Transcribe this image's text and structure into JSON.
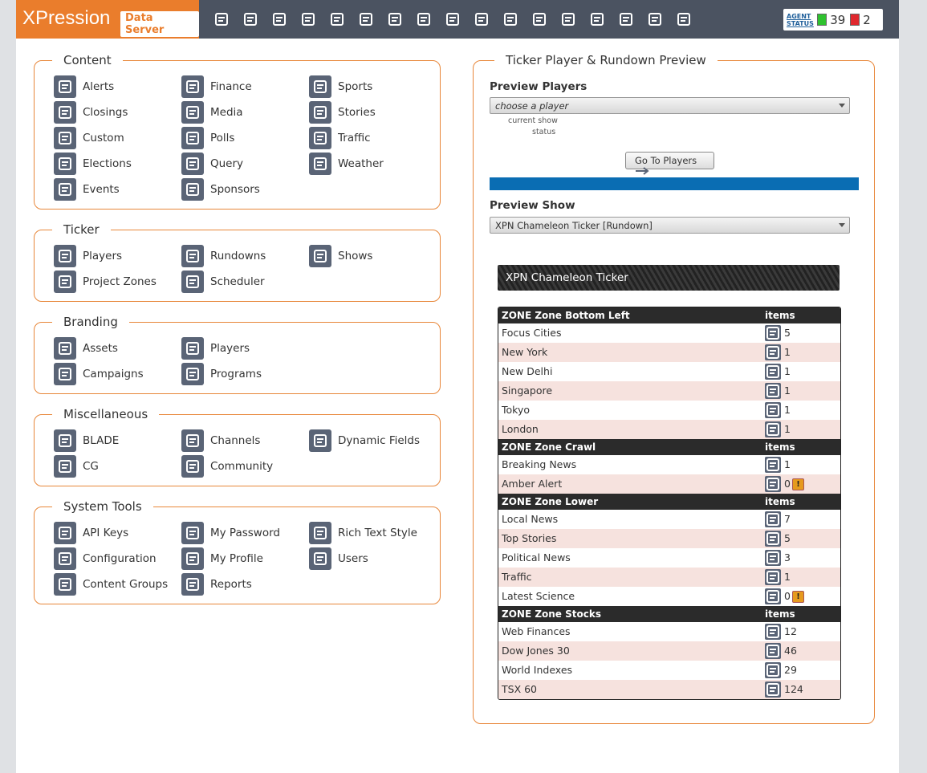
{
  "header": {
    "logo": "XPression",
    "logo_badge": "Data Server",
    "agent_status": {
      "label": "AGENT STATUS",
      "ok": 39,
      "error": 2
    }
  },
  "sections": [
    {
      "title": "Content",
      "columns": [
        [
          "Alerts",
          "Closings",
          "Custom",
          "Elections",
          "Events"
        ],
        [
          "Finance",
          "Media",
          "Polls",
          "Query",
          "Sponsors"
        ],
        [
          "Sports",
          "Stories",
          "Traffic",
          "Weather"
        ]
      ]
    },
    {
      "title": "Ticker",
      "columns": [
        [
          "Players",
          "Project Zones"
        ],
        [
          "Rundowns",
          "Scheduler"
        ],
        [
          "Shows"
        ]
      ]
    },
    {
      "title": "Branding",
      "columns": [
        [
          "Assets",
          "Campaigns"
        ],
        [
          "Players",
          "Programs"
        ],
        []
      ]
    },
    {
      "title": "Miscellaneous",
      "columns": [
        [
          "BLADE",
          "CG"
        ],
        [
          "Channels",
          "Community"
        ],
        [
          "Dynamic Fields"
        ]
      ]
    },
    {
      "title": "System Tools",
      "columns": [
        [
          "API Keys",
          "Configuration",
          "Content Groups"
        ],
        [
          "My Password",
          "My Profile",
          "Reports"
        ],
        [
          "Rich Text Style",
          "Users"
        ]
      ]
    }
  ],
  "preview": {
    "title": "Ticker Player & Rundown Preview",
    "players_label": "Preview Players",
    "players_select": "choose a player",
    "current_show": "current show",
    "status": "status",
    "button": "Go To Players",
    "show_label": "Preview Show",
    "show_select": "XPN Chameleon Ticker [Rundown]",
    "ticker_title": "XPN Chameleon Ticker",
    "zones": [
      {
        "name": "ZONE Zone Bottom Left",
        "items_header": "items",
        "rows": [
          {
            "name": "Focus Cities",
            "count": 5
          },
          {
            "name": "New York",
            "count": 1
          },
          {
            "name": "New Delhi",
            "count": 1
          },
          {
            "name": "Singapore",
            "count": 1
          },
          {
            "name": "Tokyo",
            "count": 1
          },
          {
            "name": "London",
            "count": 1
          }
        ]
      },
      {
        "name": "ZONE Zone Crawl",
        "items_header": "items",
        "rows": [
          {
            "name": "Breaking News",
            "count": 1
          },
          {
            "name": "Amber Alert",
            "count": 0,
            "warning": "!"
          }
        ]
      },
      {
        "name": "ZONE Zone Lower",
        "items_header": "items",
        "rows": [
          {
            "name": "Local News",
            "count": 7
          },
          {
            "name": "Top Stories",
            "count": 5
          },
          {
            "name": "Political News",
            "count": 3
          },
          {
            "name": "Traffic",
            "count": 1
          },
          {
            "name": "Latest Science",
            "count": 0,
            "warning": "!"
          }
        ]
      },
      {
        "name": "ZONE Zone Stocks",
        "items_header": "items",
        "rows": [
          {
            "name": "Web Finances",
            "count": 12
          },
          {
            "name": "Dow Jones 30",
            "count": 46
          },
          {
            "name": "World Indexes",
            "count": 29
          },
          {
            "name": "TSX 60",
            "count": 124
          }
        ]
      }
    ]
  }
}
